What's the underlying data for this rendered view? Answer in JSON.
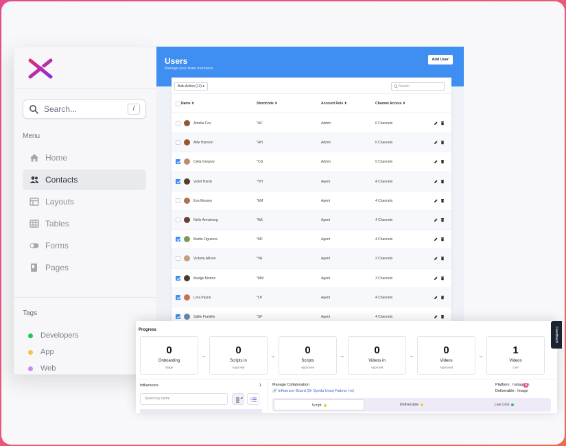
{
  "sidebar": {
    "search_placeholder": "Search...",
    "search_shortcut": "/",
    "menu_label": "Menu",
    "items": [
      {
        "label": "Home",
        "icon": "home-icon"
      },
      {
        "label": "Contacts",
        "icon": "users-icon",
        "active": true
      },
      {
        "label": "Layouts",
        "icon": "layout-icon"
      },
      {
        "label": "Tables",
        "icon": "table-icon"
      },
      {
        "label": "Forms",
        "icon": "toggle-icon"
      },
      {
        "label": "Pages",
        "icon": "pages-icon"
      }
    ],
    "tags_label": "Tags",
    "tags": [
      {
        "label": "Developers",
        "color": "#22c55e"
      },
      {
        "label": "App",
        "color": "#f5c542"
      },
      {
        "label": "Web",
        "color": "#c98bf0"
      }
    ]
  },
  "users": {
    "title": "Users",
    "subtitle": "Manage your team members.",
    "add_button": "Add User",
    "bulk_action": "Bulk Action (12)",
    "search_placeholder": "Search",
    "columns": [
      "Name ⬍",
      "Shortcode ⬍",
      "Account Role ⬍",
      "Channel Access ⬍"
    ],
    "rows": [
      {
        "name": "Amelia Cox",
        "code": "*AC",
        "role": "Admin",
        "access": "6 Channels",
        "checked": false
      },
      {
        "name": "Allie Harmon",
        "code": "*AH",
        "role": "Admin",
        "access": "6 Channels",
        "checked": false
      },
      {
        "name": "Celia Gregory",
        "code": "*CG",
        "role": "Admin",
        "access": "5 Channels",
        "checked": true
      },
      {
        "name": "Violet Hardy",
        "code": "*VH",
        "role": "Agent",
        "access": "4 Channels",
        "checked": true
      },
      {
        "name": "Eva Massey",
        "code": "*EM",
        "role": "Agent",
        "access": "4 Channels",
        "checked": false
      },
      {
        "name": "Nelle Armstrong",
        "code": "*NA",
        "role": "Agent",
        "access": "4 Channels",
        "checked": false
      },
      {
        "name": "Mattie Figueroa",
        "code": "*MF",
        "role": "Agent",
        "access": "4 Channels",
        "checked": true
      },
      {
        "name": "Victoria Allison",
        "code": "*VA",
        "role": "Agent",
        "access": "2 Channels",
        "checked": false
      },
      {
        "name": "Madge Morton",
        "code": "*MM",
        "role": "Agent",
        "access": "3 Channels",
        "checked": true
      },
      {
        "name": "Lora Payne",
        "code": "*LP",
        "role": "Agent",
        "access": "4 Channels",
        "checked": true
      },
      {
        "name": "Sallie Franklin",
        "code": "*SF",
        "role": "Agent",
        "access": "4 Channels",
        "checked": true
      }
    ]
  },
  "progress": {
    "title": "Progress",
    "stages": [
      {
        "count": "0",
        "line1": "Onboarding",
        "line2": "Stage"
      },
      {
        "count": "0",
        "line1": "Scripts in",
        "line2": "Approval"
      },
      {
        "count": "0",
        "line1": "Scripts",
        "line2": "Approved"
      },
      {
        "count": "0",
        "line1": "Videos in",
        "line2": "Approval"
      },
      {
        "count": "0",
        "line1": "Videos",
        "line2": "Approved"
      },
      {
        "count": "1",
        "line1": "Videos",
        "line2": "Live"
      }
    ],
    "arrow": "→",
    "influencers_label": "Influencers",
    "influencers_count": "1",
    "influencer_search_placeholder": "Search by name",
    "collab_label": "Manage Collaboration",
    "collab_link": "Influencer Board (Dr Syeda Urooj Fatima | rx)",
    "platform_text": "Platform    :  Instagram",
    "deliverable_text": "Deliverable  :  Image",
    "tabs": [
      {
        "label": "Script",
        "dot": "#f5c542"
      },
      {
        "label": "Deliverable",
        "dot": "#f5c542"
      },
      {
        "label": "Live Link",
        "dot": "#22c55e"
      }
    ]
  },
  "feedback_label": "Feedback"
}
